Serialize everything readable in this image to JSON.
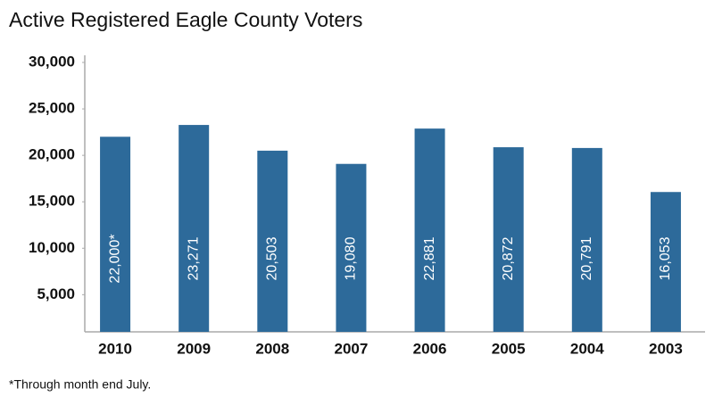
{
  "chart_data": {
    "type": "bar",
    "title": "Active Registered Eagle County Voters",
    "categories": [
      "2010",
      "2009",
      "2008",
      "2007",
      "2006",
      "2005",
      "2004",
      "2003"
    ],
    "values": [
      22000,
      23271,
      20503,
      19080,
      22881,
      20872,
      20791,
      16053
    ],
    "value_labels": [
      "22,000*",
      "23,271",
      "20,503",
      "19,080",
      "22,881",
      "20,872",
      "20,791",
      "16,053"
    ],
    "color": "#2d6a9a",
    "ylim": [
      1000,
      30000
    ],
    "yticks": [
      {
        "value": 5000,
        "label": "5,000"
      },
      {
        "value": 10000,
        "label": "10,000"
      },
      {
        "value": 15000,
        "label": "15,000"
      },
      {
        "value": 20000,
        "label": "20,000"
      },
      {
        "value": 25000,
        "label": "25,000"
      },
      {
        "value": 30000,
        "label": "30,000"
      }
    ],
    "grid": false,
    "footnote": "*Through month end July."
  }
}
